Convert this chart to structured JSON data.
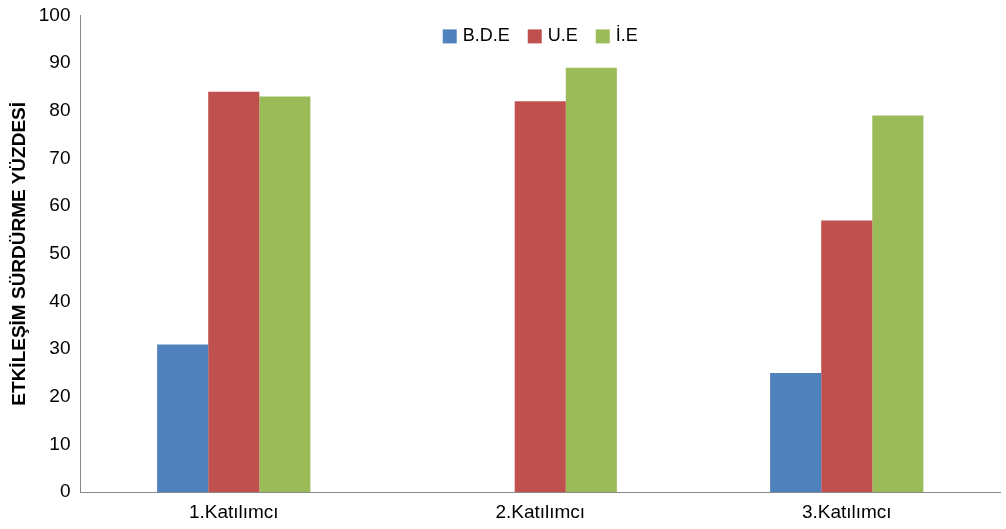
{
  "chart_data": {
    "type": "bar",
    "ylabel": "ETKİLEŞİM SÜRDÜRME YÜZDESİ",
    "categories": [
      "1.Katılımcı",
      "2.Katılımcı",
      "3.Katılımcı"
    ],
    "series": [
      {
        "name": "B.D.E",
        "color": "#4f81bd",
        "values": [
          31,
          null,
          25
        ]
      },
      {
        "name": "U.E",
        "color": "#c0504d",
        "values": [
          84,
          82,
          57
        ]
      },
      {
        "name": "İ.E",
        "color": "#9bbb59",
        "values": [
          83,
          89,
          79
        ]
      }
    ],
    "ylim": [
      0,
      100
    ],
    "yticks": [
      0,
      10,
      20,
      30,
      40,
      50,
      60,
      70,
      80,
      90,
      100
    ],
    "grid": false,
    "legend": "top"
  }
}
